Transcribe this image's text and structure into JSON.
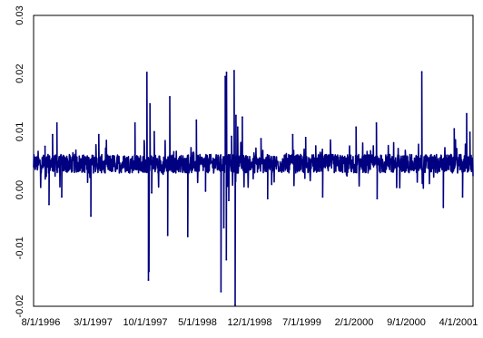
{
  "chart_data": {
    "type": "line",
    "title": "",
    "xlabel": "",
    "ylabel": "",
    "ylim": [
      -0.02,
      0.03
    ],
    "yticks": [
      "0.03",
      "0.02",
      "0.01",
      "0.00",
      "-0.01",
      "-0.02"
    ],
    "ytick_values": [
      0.03,
      0.02,
      0.01,
      0.0,
      -0.01,
      -0.02
    ],
    "x_range": [
      "8/1/1996",
      "4/30/2001"
    ],
    "xticks": [
      "8/1/1996",
      "3/1/1997",
      "10/1/1997",
      "5/1/1998",
      "12/1/1998",
      "7/1/1999",
      "2/1/2000",
      "9/1/2000",
      "4/1/2001"
    ],
    "grid": false,
    "legend": "none",
    "line_color": "#000080",
    "baseline_level": 0.0045,
    "series": [
      {
        "x": [
          "9/15/1996",
          "10/1/1996",
          "10/15/1996",
          "11/1/1996",
          "11/20/1996",
          "3/15/1997",
          "4/15/1997",
          "5/15/1997",
          "9/5/1997",
          "10/22/1997",
          "10/28/1997",
          "10/30/1997",
          "11/3/1997",
          "11/10/1997",
          "11/20/1997",
          "12/5/1997",
          "1/12/1998",
          "1/20/1998",
          "4/1/1998",
          "5/5/1998",
          "6/10/1998",
          "8/10/1998",
          "8/21/1998",
          "8/27/1998",
          "8/31/1998",
          "9/1/1998",
          "9/10/1998",
          "9/21/1998",
          "10/1/1998",
          "10/5/1998",
          "10/8/1998",
          "10/15/1998",
          "11/2/1998",
          "1/15/1999",
          "2/10/1999",
          "5/20/1999",
          "7/10/1999",
          "9/15/1999",
          "1/25/2000",
          "4/14/2000",
          "4/17/2000",
          "10/10/2000",
          "1/3/2001",
          "2/15/2001",
          "3/20/2001",
          "4/5/2001",
          "4/18/2001"
        ],
        "y": [
          0.0075,
          -0.0025,
          0.0095,
          0.0115,
          -0.0012,
          -0.0045,
          0.0095,
          0.0085,
          0.0115,
          0.0202,
          -0.0155,
          -0.014,
          0.0148,
          -0.0005,
          0.01,
          0.003,
          -0.0078,
          0.016,
          -0.008,
          0.012,
          -0.0002,
          -0.0175,
          -0.0065,
          0.0195,
          -0.012,
          0.0202,
          -0.0018,
          0.0092,
          0.0205,
          -0.0198,
          0.0128,
          0.0108,
          0.0125,
          0.0088,
          -0.0015,
          0.0095,
          0.009,
          -0.0012,
          0.0108,
          0.0115,
          -0.0015,
          0.0203,
          -0.003,
          0.0105,
          -0.0012,
          0.0131,
          0.0099
        ]
      }
    ]
  }
}
